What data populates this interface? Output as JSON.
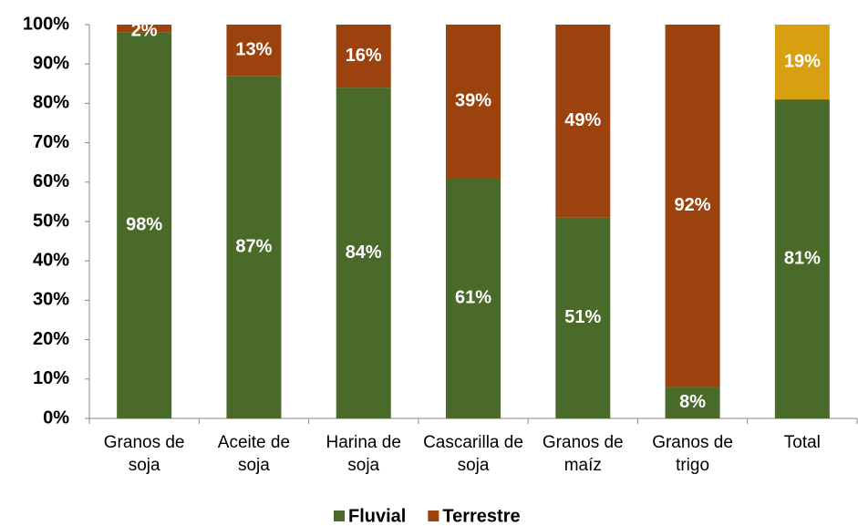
{
  "chart_data": {
    "type": "stacked_bar",
    "categories": [
      "Granos de soja",
      "Aceite de soja",
      "Harina de soja",
      "Cascarilla de soja",
      "Granos de maíz",
      "Granos de trigo",
      "Total"
    ],
    "series": [
      {
        "name": "Fluvial",
        "color": "#4a6a2a",
        "colors": [
          "#4a6a2a",
          "#4a6a2a",
          "#4a6a2a",
          "#4a6a2a",
          "#4a6a2a",
          "#4a6a2a",
          "#4a6a2a"
        ],
        "values": [
          98,
          87,
          84,
          61,
          51,
          8,
          81
        ],
        "value_labels": [
          "98%",
          "87%",
          "84%",
          "61%",
          "51%",
          "8%",
          "81%"
        ]
      },
      {
        "name": "Terrestre",
        "color": "#9c420e",
        "colors": [
          "#9c420e",
          "#9c420e",
          "#9c420e",
          "#9c420e",
          "#9c420e",
          "#9c420e",
          "#d8a010"
        ],
        "values": [
          2,
          13,
          16,
          39,
          49,
          92,
          19
        ],
        "value_labels": [
          "2%",
          "13%",
          "16%",
          "39%",
          "49%",
          "92%",
          "19%"
        ]
      }
    ],
    "ylim": [
      0,
      100
    ],
    "yticks": [
      {
        "value": 0,
        "label": "0%"
      },
      {
        "value": 10,
        "label": "10%"
      },
      {
        "value": 20,
        "label": "20%"
      },
      {
        "value": 30,
        "label": "30%"
      },
      {
        "value": 40,
        "label": "40%"
      },
      {
        "value": 50,
        "label": "50%"
      },
      {
        "value": 60,
        "label": "60%"
      },
      {
        "value": 70,
        "label": "70%"
      },
      {
        "value": 80,
        "label": "80%"
      },
      {
        "value": 90,
        "label": "90%"
      },
      {
        "value": 100,
        "label": "100%"
      }
    ],
    "legend": "bottom"
  }
}
